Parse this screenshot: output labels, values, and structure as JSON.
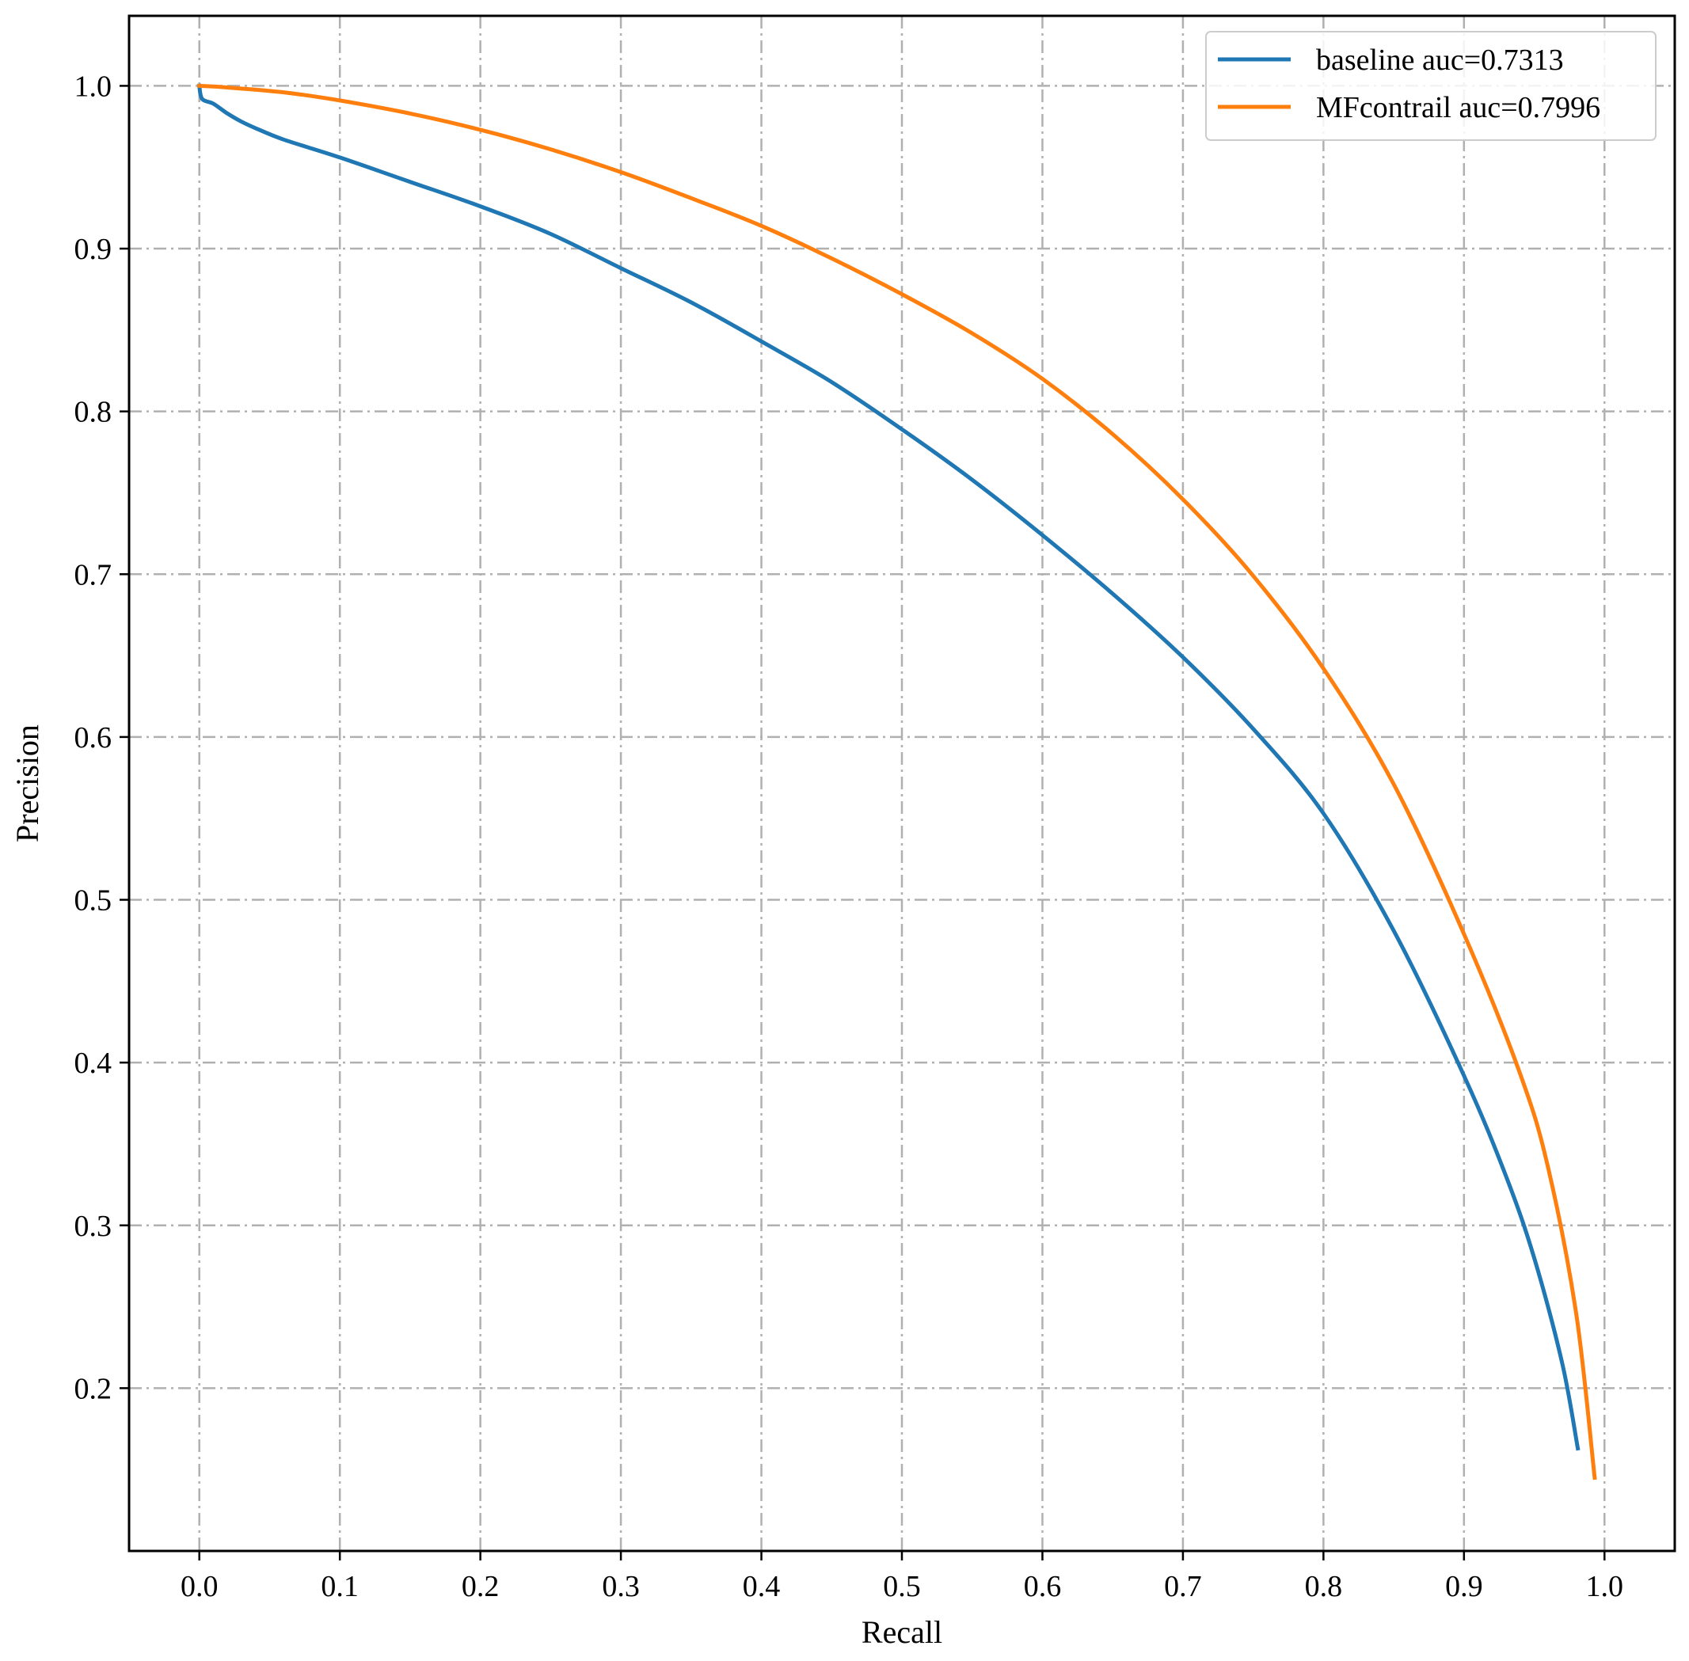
{
  "chart_data": {
    "type": "line",
    "title": "",
    "xlabel": "Recall",
    "ylabel": "Precision",
    "xlim": [
      -0.05,
      1.05
    ],
    "ylim": [
      0.1,
      1.043
    ],
    "xticks": [
      "0.0",
      "0.1",
      "0.2",
      "0.3",
      "0.4",
      "0.5",
      "0.6",
      "0.7",
      "0.8",
      "0.9",
      "1.0"
    ],
    "yticks": [
      "0.2",
      "0.3",
      "0.4",
      "0.5",
      "0.6",
      "0.7",
      "0.8",
      "0.9",
      "1.0"
    ],
    "grid": true,
    "grid_style": "dash-dot",
    "legend_position": "top-right",
    "series": [
      {
        "name": "baseline auc=0.7313",
        "color": "#1f77b4",
        "points": [
          [
            0.0,
            1.0
          ],
          [
            0.002,
            0.992
          ],
          [
            0.01,
            0.989
          ],
          [
            0.02,
            0.983
          ],
          [
            0.03,
            0.978
          ],
          [
            0.04,
            0.974
          ],
          [
            0.06,
            0.967
          ],
          [
            0.1,
            0.956
          ],
          [
            0.15,
            0.941
          ],
          [
            0.2,
            0.926
          ],
          [
            0.25,
            0.909
          ],
          [
            0.3,
            0.888
          ],
          [
            0.35,
            0.867
          ],
          [
            0.4,
            0.843
          ],
          [
            0.45,
            0.818
          ],
          [
            0.5,
            0.789
          ],
          [
            0.55,
            0.758
          ],
          [
            0.6,
            0.724
          ],
          [
            0.65,
            0.688
          ],
          [
            0.7,
            0.649
          ],
          [
            0.75,
            0.605
          ],
          [
            0.8,
            0.553
          ],
          [
            0.85,
            0.481
          ],
          [
            0.9,
            0.392
          ],
          [
            0.93,
            0.33
          ],
          [
            0.95,
            0.28
          ],
          [
            0.97,
            0.215
          ],
          [
            0.981,
            0.163
          ]
        ]
      },
      {
        "name": "MFcontrail auc=0.7996",
        "color": "#ff7f0e",
        "points": [
          [
            0.0,
            1.0
          ],
          [
            0.02,
            0.999
          ],
          [
            0.06,
            0.996
          ],
          [
            0.1,
            0.991
          ],
          [
            0.15,
            0.983
          ],
          [
            0.2,
            0.973
          ],
          [
            0.25,
            0.961
          ],
          [
            0.3,
            0.947
          ],
          [
            0.35,
            0.931
          ],
          [
            0.4,
            0.914
          ],
          [
            0.45,
            0.894
          ],
          [
            0.5,
            0.872
          ],
          [
            0.55,
            0.848
          ],
          [
            0.6,
            0.82
          ],
          [
            0.65,
            0.786
          ],
          [
            0.7,
            0.746
          ],
          [
            0.75,
            0.699
          ],
          [
            0.8,
            0.642
          ],
          [
            0.85,
            0.571
          ],
          [
            0.9,
            0.479
          ],
          [
            0.94,
            0.393
          ],
          [
            0.96,
            0.335
          ],
          [
            0.98,
            0.245
          ],
          [
            0.993,
            0.145
          ]
        ]
      }
    ]
  }
}
